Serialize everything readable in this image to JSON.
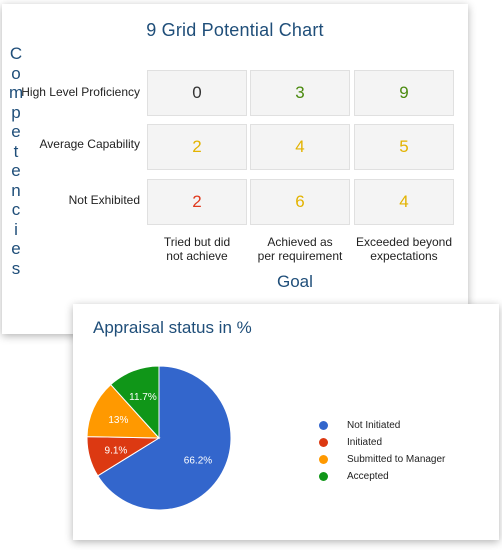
{
  "grid": {
    "title": "9 Grid Potential Chart",
    "y_axis_label": "Competencies",
    "x_axis_label": "Goal",
    "rows": [
      {
        "label": "High Level Proficiency",
        "values": [
          "0",
          "3",
          "9"
        ],
        "colors": [
          "#333333",
          "#4a8a0e",
          "#4a8a0e"
        ]
      },
      {
        "label": "Average Capability",
        "values": [
          "2",
          "4",
          "5"
        ],
        "colors": [
          "#e3b300",
          "#e3b300",
          "#e3b300"
        ]
      },
      {
        "label": "Not Exhibited",
        "values": [
          "2",
          "6",
          "4"
        ],
        "colors": [
          "#e03a1e",
          "#e3b300",
          "#e3b300"
        ]
      }
    ],
    "columns": [
      {
        "line1": "Tried but did",
        "line2": "not achieve"
      },
      {
        "line1": "Achieved as",
        "line2": "per requirement"
      },
      {
        "line1": "Exceeded beyond",
        "line2": "expectations"
      }
    ]
  },
  "appraisal": {
    "title": "Appraisal status in %"
  },
  "chart_data": {
    "type": "pie",
    "title": "Appraisal status in %",
    "categories": [
      "Not Initiated",
      "Initiated",
      "Submitted to Manager",
      "Accepted"
    ],
    "values": [
      66.2,
      9.1,
      13,
      11.7
    ],
    "value_labels": [
      "66.2%",
      "9.1%",
      "13%",
      "11.7%"
    ],
    "colors": [
      "#3366cc",
      "#dc3912",
      "#ff9900",
      "#109618"
    ],
    "legend_position": "right"
  }
}
